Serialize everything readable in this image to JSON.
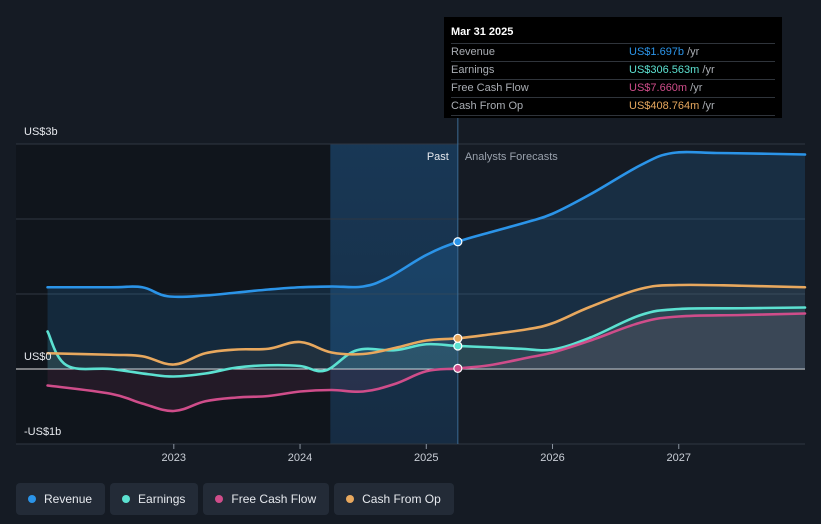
{
  "tooltip": {
    "date": "Mar 31 2025",
    "rows": [
      {
        "label": "Revenue",
        "value": "US$1.697b",
        "unit": "/yr",
        "color": "#2b94e8"
      },
      {
        "label": "Earnings",
        "value": "US$306.563m",
        "unit": "/yr",
        "color": "#5ce1d1"
      },
      {
        "label": "Free Cash Flow",
        "value": "US$7.660m",
        "unit": "/yr",
        "color": "#cf4d8a"
      },
      {
        "label": "Cash From Op",
        "value": "US$408.764m",
        "unit": "/yr",
        "color": "#e8a85e"
      }
    ]
  },
  "legend": [
    {
      "label": "Revenue",
      "color": "#2b94e8"
    },
    {
      "label": "Earnings",
      "color": "#5ce1d1"
    },
    {
      "label": "Free Cash Flow",
      "color": "#cf4d8a"
    },
    {
      "label": "Cash From Op",
      "color": "#e8a85e"
    }
  ],
  "chart_data": {
    "type": "line",
    "title": "",
    "xlabel": "",
    "ylabel": "",
    "past_label": "Past",
    "forecast_label": "Analysts Forecasts",
    "x_ticks": [
      {
        "label": "2023",
        "value": 2023.0
      },
      {
        "label": "2024",
        "value": 2024.0
      },
      {
        "label": "2025",
        "value": 2025.0
      },
      {
        "label": "2026",
        "value": 2026.0
      },
      {
        "label": "2027",
        "value": 2027.0
      }
    ],
    "y_ticks": [
      {
        "label": "US$3b",
        "value": 3.0
      },
      {
        "label": "US$0",
        "value": 0.0
      },
      {
        "label": "-US$1b",
        "value": -1.0
      }
    ],
    "xlim": [
      2021.75,
      2028.0
    ],
    "ylim": [
      -1.0,
      3.0
    ],
    "highlight_start": 2024.24,
    "divider_x": 2025.25,
    "series": [
      {
        "name": "Revenue",
        "color": "#2b94e8",
        "points": [
          [
            2022.0,
            1.09
          ],
          [
            2022.5,
            1.09
          ],
          [
            2022.75,
            1.09
          ],
          [
            2022.95,
            0.97
          ],
          [
            2023.25,
            0.98
          ],
          [
            2023.5,
            1.02
          ],
          [
            2023.75,
            1.06
          ],
          [
            2024.0,
            1.09
          ],
          [
            2024.25,
            1.1
          ],
          [
            2024.5,
            1.1
          ],
          [
            2024.7,
            1.22
          ],
          [
            2025.0,
            1.52
          ],
          [
            2025.25,
            1.697
          ],
          [
            2025.5,
            1.82
          ],
          [
            2025.8,
            1.96
          ],
          [
            2026.0,
            2.07
          ],
          [
            2026.3,
            2.33
          ],
          [
            2026.7,
            2.72
          ],
          [
            2026.95,
            2.88
          ],
          [
            2027.3,
            2.88
          ],
          [
            2027.7,
            2.87
          ],
          [
            2028.0,
            2.86
          ]
        ]
      },
      {
        "name": "Earnings",
        "color": "#5ce1d1",
        "points": [
          [
            2022.0,
            0.5
          ],
          [
            2022.15,
            0.05
          ],
          [
            2022.5,
            0.0
          ],
          [
            2022.8,
            -0.07
          ],
          [
            2023.0,
            -0.1
          ],
          [
            2023.25,
            -0.06
          ],
          [
            2023.5,
            0.02
          ],
          [
            2023.75,
            0.05
          ],
          [
            2024.0,
            0.04
          ],
          [
            2024.2,
            -0.02
          ],
          [
            2024.45,
            0.25
          ],
          [
            2024.75,
            0.25
          ],
          [
            2025.0,
            0.33
          ],
          [
            2025.25,
            0.307
          ],
          [
            2025.5,
            0.29
          ],
          [
            2025.75,
            0.27
          ],
          [
            2026.0,
            0.26
          ],
          [
            2026.3,
            0.42
          ],
          [
            2026.7,
            0.72
          ],
          [
            2027.0,
            0.8
          ],
          [
            2027.5,
            0.81
          ],
          [
            2028.0,
            0.82
          ]
        ]
      },
      {
        "name": "Free Cash Flow",
        "color": "#cf4d8a",
        "points": [
          [
            2022.0,
            -0.22
          ],
          [
            2022.5,
            -0.33
          ],
          [
            2022.75,
            -0.46
          ],
          [
            2023.0,
            -0.56
          ],
          [
            2023.25,
            -0.43
          ],
          [
            2023.5,
            -0.38
          ],
          [
            2023.75,
            -0.36
          ],
          [
            2024.0,
            -0.3
          ],
          [
            2024.25,
            -0.28
          ],
          [
            2024.5,
            -0.3
          ],
          [
            2024.75,
            -0.2
          ],
          [
            2025.0,
            -0.03
          ],
          [
            2025.25,
            0.008
          ],
          [
            2025.5,
            0.05
          ],
          [
            2025.8,
            0.15
          ],
          [
            2026.0,
            0.22
          ],
          [
            2026.3,
            0.38
          ],
          [
            2026.7,
            0.62
          ],
          [
            2027.0,
            0.7
          ],
          [
            2027.5,
            0.72
          ],
          [
            2028.0,
            0.74
          ]
        ]
      },
      {
        "name": "Cash From Op",
        "color": "#e8a85e",
        "points": [
          [
            2022.0,
            0.21
          ],
          [
            2022.5,
            0.19
          ],
          [
            2022.75,
            0.17
          ],
          [
            2023.0,
            0.06
          ],
          [
            2023.25,
            0.21
          ],
          [
            2023.5,
            0.26
          ],
          [
            2023.75,
            0.27
          ],
          [
            2024.0,
            0.36
          ],
          [
            2024.25,
            0.22
          ],
          [
            2024.5,
            0.2
          ],
          [
            2024.75,
            0.28
          ],
          [
            2025.0,
            0.38
          ],
          [
            2025.25,
            0.409
          ],
          [
            2025.5,
            0.46
          ],
          [
            2025.8,
            0.53
          ],
          [
            2026.0,
            0.61
          ],
          [
            2026.3,
            0.83
          ],
          [
            2026.7,
            1.07
          ],
          [
            2027.0,
            1.12
          ],
          [
            2027.5,
            1.11
          ],
          [
            2028.0,
            1.09
          ]
        ]
      }
    ],
    "markers": [
      {
        "series": "Revenue",
        "x": 2025.25,
        "y": 1.697
      },
      {
        "series": "Earnings",
        "x": 2025.25,
        "y": 0.307
      },
      {
        "series": "Free Cash Flow",
        "x": 2025.25,
        "y": 0.008
      },
      {
        "series": "Cash From Op",
        "x": 2025.25,
        "y": 0.409
      }
    ]
  }
}
